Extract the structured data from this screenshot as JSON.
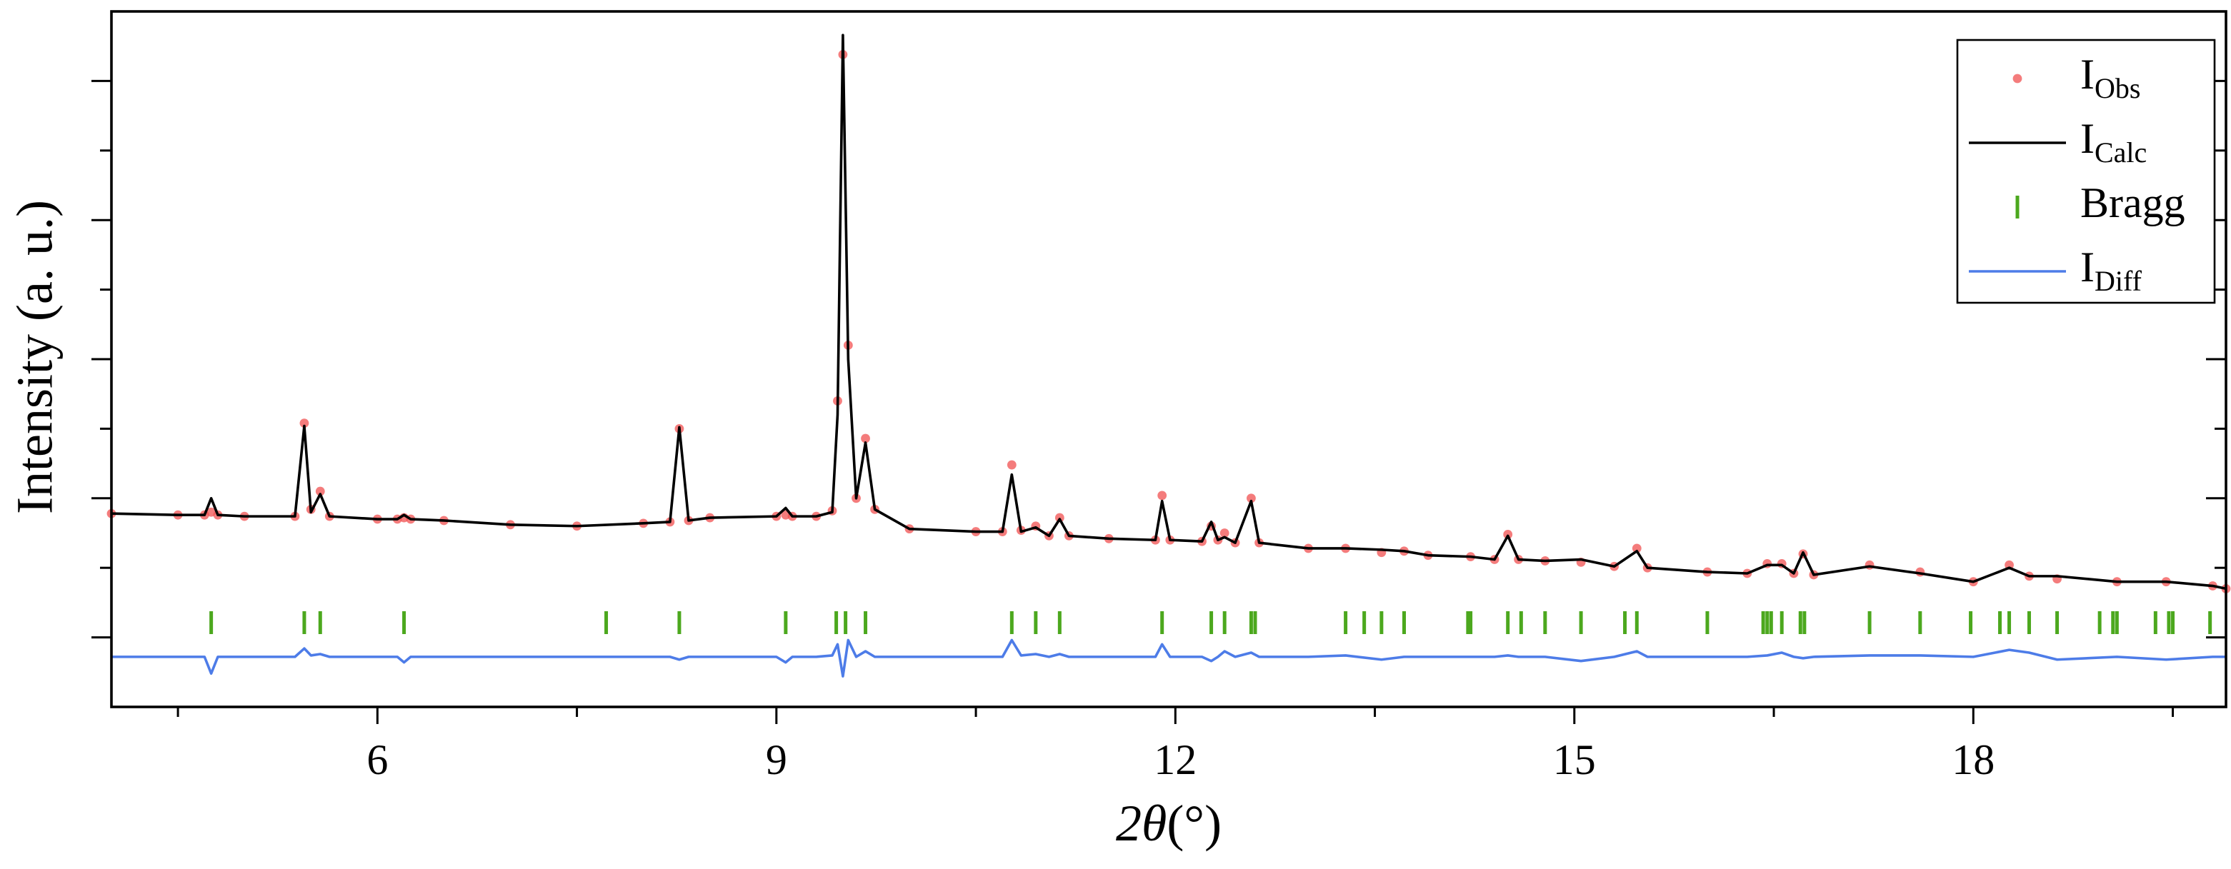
{
  "chart_data": {
    "type": "rietveld",
    "x_label": "2θ(°)",
    "y_label": "Intensity (a. u.)",
    "xlim": [
      4,
      19.9
    ],
    "xticks": [
      6,
      9,
      12,
      15,
      18
    ],
    "xminorticks": [
      4.5,
      7.5,
      10.5,
      13.5,
      16.5,
      19.5
    ],
    "ylim": [
      -0.5,
      4.5
    ],
    "yticks": [
      0,
      1,
      2,
      3,
      4
    ],
    "yminorticks": [
      0.5,
      1.5,
      2.5,
      3.5
    ],
    "x": [
      4,
      4.5,
      4.7,
      4.75,
      4.8,
      5.0,
      5.38,
      5.45,
      5.5,
      5.57,
      5.64,
      6.0,
      6.15,
      6.2,
      6.25,
      6.5,
      7.0,
      7.5,
      8.0,
      8.2,
      8.27,
      8.34,
      8.5,
      9.0,
      9.07,
      9.12,
      9.3,
      9.42,
      9.46,
      9.5,
      9.54,
      9.6,
      9.67,
      9.74,
      10.0,
      10.5,
      10.7,
      10.77,
      10.84,
      10.95,
      11.05,
      11.13,
      11.2,
      11.5,
      11.85,
      11.9,
      11.96,
      12.2,
      12.27,
      12.32,
      12.37,
      12.45,
      12.57,
      12.63,
      13.0,
      13.28,
      13.55,
      13.72,
      13.9,
      14.22,
      14.4,
      14.5,
      14.58,
      14.78,
      15.05,
      15.3,
      15.47,
      15.55,
      16.0,
      16.3,
      16.45,
      16.56,
      16.65,
      16.72,
      16.8,
      17.22,
      17.6,
      18.0,
      18.27,
      18.42,
      18.63,
      19.08,
      19.45,
      19.8,
      19.9
    ],
    "series": [
      {
        "name": "IObs",
        "style": "scatter",
        "color": "#f05050",
        "values": [
          0.89,
          0.88,
          0.88,
          0.9,
          0.88,
          0.87,
          0.87,
          1.54,
          0.92,
          1.05,
          0.87,
          0.85,
          0.85,
          0.86,
          0.85,
          0.84,
          0.81,
          0.8,
          0.82,
          0.83,
          1.5,
          0.84,
          0.86,
          0.87,
          0.88,
          0.87,
          0.87,
          0.91,
          1.7,
          4.19,
          2.1,
          1.0,
          1.43,
          0.92,
          0.78,
          0.76,
          0.76,
          1.24,
          0.77,
          0.8,
          0.73,
          0.86,
          0.73,
          0.71,
          0.7,
          1.02,
          0.7,
          0.69,
          0.8,
          0.7,
          0.75,
          0.68,
          1.0,
          0.68,
          0.64,
          0.64,
          0.61,
          0.62,
          0.59,
          0.58,
          0.56,
          0.74,
          0.56,
          0.55,
          0.54,
          0.51,
          0.64,
          0.5,
          0.47,
          0.46,
          0.53,
          0.53,
          0.46,
          0.6,
          0.45,
          0.52,
          0.47,
          0.4,
          0.52,
          0.44,
          0.42,
          0.4,
          0.4,
          0.37,
          0.35
        ]
      },
      {
        "name": "ICalc",
        "style": "line",
        "color": "#000000",
        "values": [
          0.89,
          0.88,
          0.88,
          1.0,
          0.88,
          0.87,
          0.87,
          1.52,
          0.9,
          1.03,
          0.87,
          0.85,
          0.85,
          0.88,
          0.85,
          0.84,
          0.81,
          0.8,
          0.82,
          0.83,
          1.51,
          0.84,
          0.86,
          0.87,
          0.93,
          0.87,
          0.87,
          0.9,
          1.6,
          4.33,
          2.0,
          1.0,
          1.4,
          0.92,
          0.78,
          0.76,
          0.76,
          1.17,
          0.76,
          0.79,
          0.73,
          0.85,
          0.73,
          0.71,
          0.7,
          0.98,
          0.7,
          0.69,
          0.83,
          0.7,
          0.72,
          0.68,
          0.98,
          0.68,
          0.64,
          0.64,
          0.63,
          0.62,
          0.59,
          0.58,
          0.56,
          0.73,
          0.56,
          0.55,
          0.56,
          0.51,
          0.62,
          0.5,
          0.47,
          0.46,
          0.52,
          0.52,
          0.46,
          0.61,
          0.45,
          0.51,
          0.46,
          0.4,
          0.5,
          0.44,
          0.44,
          0.4,
          0.4,
          0.37,
          0.35
        ]
      },
      {
        "name": "Bragg",
        "style": "bragg",
        "color": "#4ca81e",
        "positions": [
          4.75,
          5.45,
          5.57,
          6.2,
          7.72,
          8.27,
          9.07,
          9.45,
          9.52,
          9.67,
          10.77,
          10.95,
          11.13,
          11.9,
          12.27,
          12.37,
          12.57,
          12.6,
          13.28,
          13.42,
          13.55,
          13.72,
          14.2,
          14.22,
          14.5,
          14.6,
          14.78,
          15.05,
          15.38,
          15.47,
          16.0,
          16.42,
          16.45,
          16.48,
          16.56,
          16.7,
          16.73,
          17.22,
          17.6,
          17.98,
          18.2,
          18.27,
          18.42,
          18.63,
          18.95,
          19.05,
          19.08,
          19.37,
          19.47,
          19.5,
          19.78
        ]
      },
      {
        "name": "IDiff",
        "style": "line",
        "color": "#4d7ce8",
        "values": [
          -0.14,
          -0.14,
          -0.14,
          -0.26,
          -0.14,
          -0.14,
          -0.14,
          -0.08,
          -0.13,
          -0.12,
          -0.14,
          -0.14,
          -0.14,
          -0.18,
          -0.14,
          -0.14,
          -0.14,
          -0.14,
          -0.14,
          -0.14,
          -0.16,
          -0.14,
          -0.14,
          -0.14,
          -0.18,
          -0.14,
          -0.14,
          -0.13,
          -0.05,
          -0.28,
          -0.02,
          -0.14,
          -0.1,
          -0.14,
          -0.14,
          -0.14,
          -0.14,
          -0.02,
          -0.13,
          -0.12,
          -0.14,
          -0.12,
          -0.14,
          -0.14,
          -0.14,
          -0.05,
          -0.14,
          -0.14,
          -0.17,
          -0.14,
          -0.1,
          -0.14,
          -0.11,
          -0.14,
          -0.14,
          -0.13,
          -0.16,
          -0.14,
          -0.14,
          -0.14,
          -0.14,
          -0.13,
          -0.14,
          -0.14,
          -0.17,
          -0.14,
          -0.1,
          -0.14,
          -0.14,
          -0.14,
          -0.13,
          -0.11,
          -0.14,
          -0.15,
          -0.14,
          -0.13,
          -0.13,
          -0.14,
          -0.09,
          -0.11,
          -0.16,
          -0.14,
          -0.16,
          -0.14,
          -0.14
        ]
      }
    ],
    "grid": false
  }
}
